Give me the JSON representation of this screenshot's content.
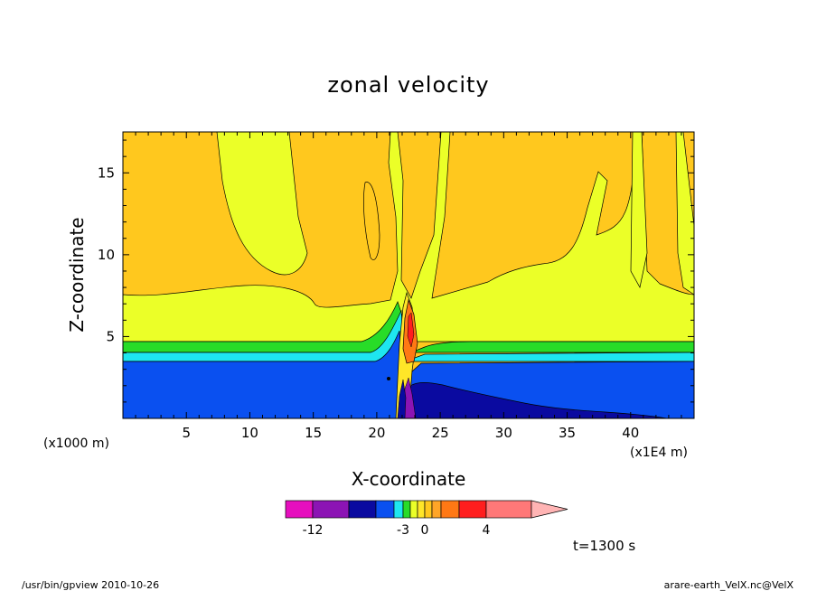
{
  "chart_data": {
    "type": "filled-contour",
    "title": "zonal velocity",
    "xlabel": "X-coordinate",
    "ylabel": "Z-coordinate",
    "x_unit": "(x1E4 m)",
    "y_unit": "(x1000 m)",
    "xlim": [
      0,
      45
    ],
    "ylim": [
      0,
      17.5
    ],
    "x_ticks": [
      5,
      10,
      15,
      20,
      25,
      30,
      35,
      40
    ],
    "y_ticks": [
      5,
      10,
      15
    ],
    "time_label": "t=1300 s",
    "colorbar": {
      "levels": [
        -15,
        -12,
        -9,
        -6,
        -4,
        -3,
        -2,
        -1,
        0,
        1,
        2,
        3,
        4,
        6,
        8
      ],
      "tick_labels": [
        {
          "label": "-12",
          "value": -12
        },
        {
          "label": "-3",
          "value": -3
        },
        {
          "label": "0",
          "value": 0
        },
        {
          "label": "4",
          "value": 4
        }
      ],
      "colors": [
        "#e60fbe",
        "#8c14b4",
        "#0a0aa0",
        "#0a50f0",
        "#1ee6f0",
        "#28dc28",
        "#ebff28",
        "#ffe628",
        "#ffc81e",
        "#ffa528",
        "#ff7814",
        "#ff1e1e",
        "#ff7878",
        "#ffb4b4"
      ]
    },
    "regions": [
      {
        "name": "lower-westerly",
        "color": "#0a50f0",
        "z_range": [
          0,
          3.8
        ]
      },
      {
        "name": "cyan-band",
        "color": "#1ee6f0",
        "z_range": [
          3.8,
          4.3
        ]
      },
      {
        "name": "green-band",
        "color": "#28dc28",
        "z_range": [
          4.3,
          4.9
        ]
      },
      {
        "name": "yellow-layer",
        "color": "#ebff28",
        "z_range": [
          4.9,
          7.5
        ]
      },
      {
        "name": "upper-orange",
        "color": "#ffc81e",
        "z_range": [
          7.5,
          17.5
        ]
      },
      {
        "name": "surface-trough",
        "color": "#0a0aa0",
        "x_range": [
          22.5,
          37
        ],
        "z_range": [
          0,
          2.2
        ]
      },
      {
        "name": "updraft-core",
        "color": "#ff7814",
        "x_center": 22.2,
        "z_range": [
          4,
          7.7
        ]
      }
    ]
  },
  "footer": {
    "left": "/usr/bin/gpview   2010-10-26",
    "right": "arare-earth_VelX.nc@VelX"
  }
}
